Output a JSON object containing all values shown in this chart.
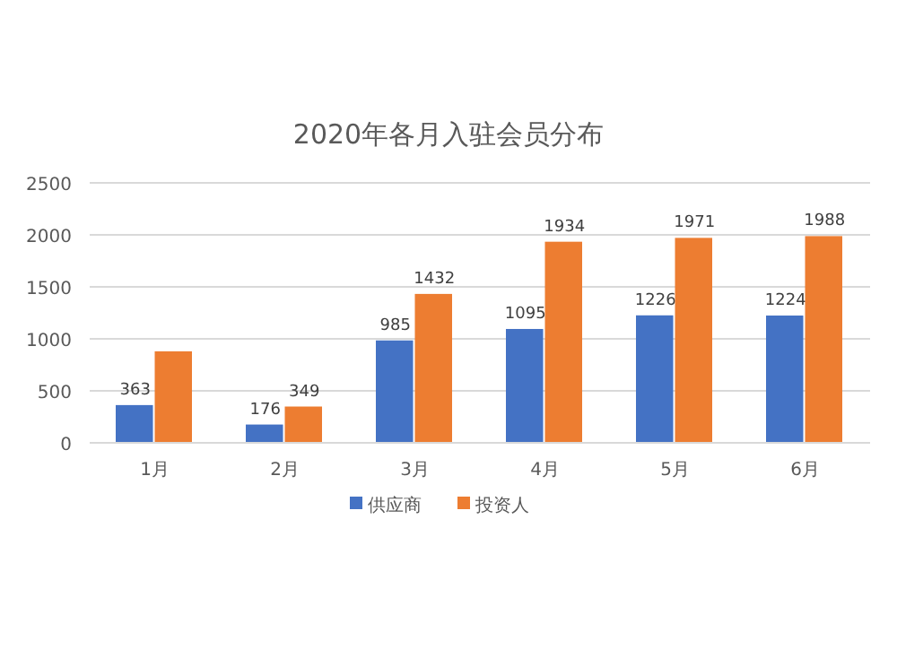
{
  "chart_data": {
    "type": "bar",
    "title": "2020年各月入驻会员分布",
    "categories": [
      "1月",
      "2月",
      "3月",
      "4月",
      "5月",
      "6月"
    ],
    "series": [
      {
        "name": "供应商",
        "color": "#4472c4",
        "values": [
          363,
          176,
          985,
          1095,
          1226,
          1224
        ],
        "value_labels": [
          "363",
          "176",
          "985",
          "1095",
          "1226",
          "1224"
        ]
      },
      {
        "name": "投资人",
        "color": "#ed7d31",
        "values": [
          880,
          349,
          1432,
          1934,
          1971,
          1988
        ],
        "value_labels": [
          null,
          "349",
          "1432",
          "1934",
          "1971",
          "1988"
        ]
      }
    ],
    "ylim": [
      0,
      2500
    ],
    "yticks": [
      0,
      500,
      1000,
      1500,
      2000,
      2500
    ],
    "grid": "y",
    "legend": "bottom"
  }
}
